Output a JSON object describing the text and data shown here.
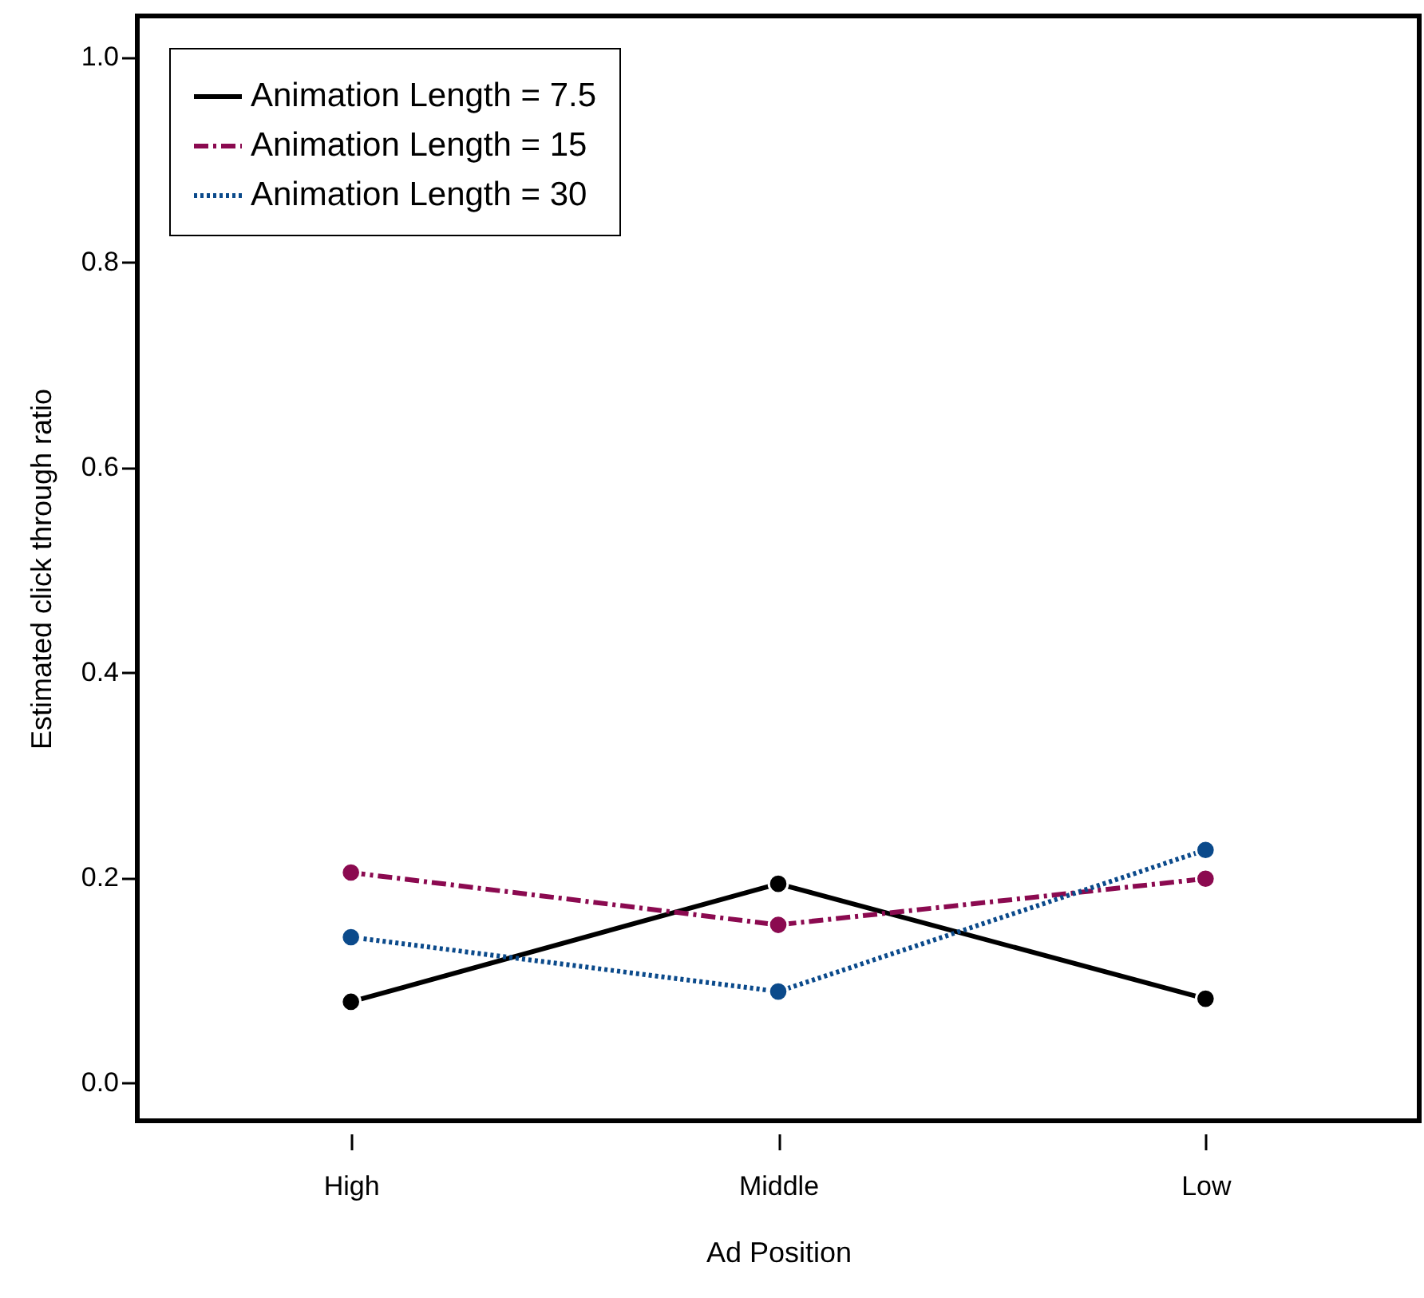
{
  "chart_data": {
    "type": "line",
    "xlabel": "Ad Position",
    "ylabel": "Estimated click through ratio",
    "categories": [
      "High",
      "Middle",
      "Low"
    ],
    "series": [
      {
        "name": "Animation Length = 7.5",
        "color": "#000000",
        "line_style": "solid",
        "values": [
          0.079,
          0.194,
          0.082
        ]
      },
      {
        "name": "Animation Length = 15",
        "color": "#8b0a50",
        "line_style": "dashed",
        "values": [
          0.205,
          0.154,
          0.199
        ]
      },
      {
        "name": "Animation Length = 30",
        "color": "#0b4a8b",
        "line_style": "dotted",
        "values": [
          0.142,
          0.089,
          0.227
        ]
      }
    ],
    "ylim": [
      -0.037,
      1.04
    ],
    "yticks": [
      {
        "value": 0,
        "label": "0.0"
      },
      0.2,
      0.4,
      0.6,
      0.8,
      {
        "value": 1,
        "label": "1.0"
      }
    ],
    "grid": false,
    "legend": "top left",
    "marker": "circle"
  }
}
